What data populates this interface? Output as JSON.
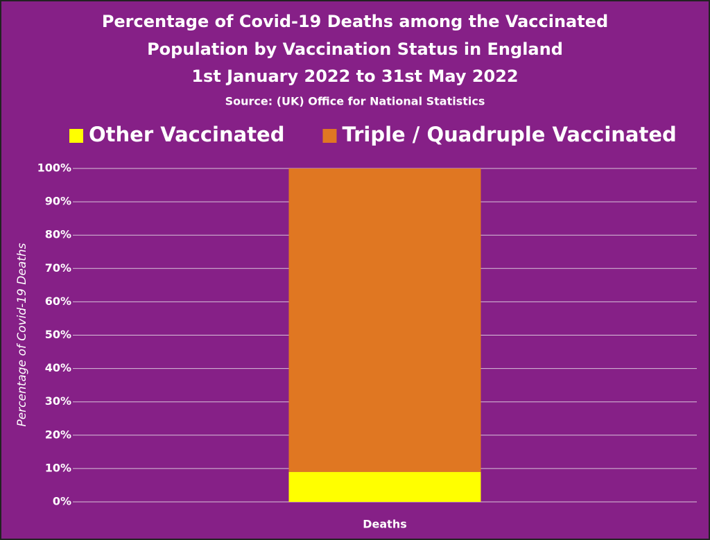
{
  "chart_data": {
    "type": "stacked_bar",
    "title": [
      "Percentage of Covid-19 Deaths among the Vaccinated",
      "Population by Vaccination Status in England"
    ],
    "subtitle": "1st January 2022 to 31st May 2022",
    "source": "Source:  (UK) Office for National Statistics",
    "y_label": "Percentage of Covid-19 Deaths",
    "categories": [
      "Deaths"
    ],
    "series": [
      {
        "name": "Other Vaccinated",
        "color": "#ffff00",
        "values": [
          9
        ]
      },
      {
        "name": "Triple / Quadruple Vaccinated",
        "color": "#e07722",
        "values": [
          91
        ]
      }
    ],
    "ylim": [
      0,
      100
    ],
    "yticks": [
      {
        "value": 0,
        "label": "0%"
      },
      {
        "value": 10,
        "label": "10%"
      },
      {
        "value": 20,
        "label": "20%"
      },
      {
        "value": 30,
        "label": "30%"
      },
      {
        "value": 40,
        "label": "40%"
      },
      {
        "value": 50,
        "label": "50%"
      },
      {
        "value": 60,
        "label": "60%"
      },
      {
        "value": 70,
        "label": "70%"
      },
      {
        "value": 80,
        "label": "80%"
      },
      {
        "value": 90,
        "label": "90%"
      },
      {
        "value": 100,
        "label": "100%"
      }
    ],
    "grid": true,
    "legend": "top"
  }
}
